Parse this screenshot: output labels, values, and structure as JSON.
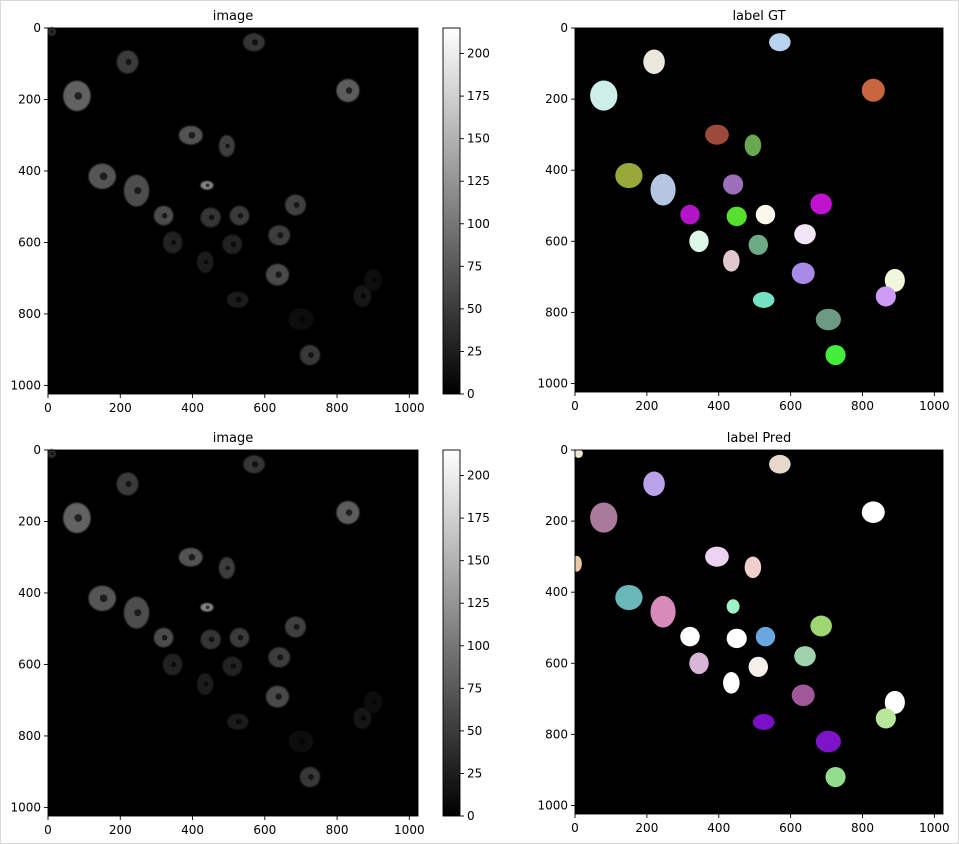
{
  "chart_data": [
    {
      "type": "heatmap",
      "title": "image",
      "xlim": [
        0,
        1024
      ],
      "ylim": [
        1024,
        0
      ],
      "xticks": [
        0,
        200,
        400,
        600,
        800,
        1000
      ],
      "yticks": [
        0,
        200,
        400,
        600,
        800,
        1000
      ],
      "colorbar": {
        "min": 0,
        "max": 215,
        "ticks": [
          0,
          25,
          50,
          75,
          100,
          125,
          150,
          175,
          200
        ],
        "cmap": "gray"
      },
      "nuclei": [
        {
          "x": 220,
          "y": 95,
          "rx": 30,
          "ry": 32,
          "level": 90
        },
        {
          "x": 570,
          "y": 40,
          "rx": 30,
          "ry": 25,
          "level": 80
        },
        {
          "x": 80,
          "y": 190,
          "rx": 38,
          "ry": 42,
          "level": 150
        },
        {
          "x": 830,
          "y": 175,
          "rx": 32,
          "ry": 32,
          "level": 140
        },
        {
          "x": 395,
          "y": 300,
          "rx": 33,
          "ry": 26,
          "level": 125
        },
        {
          "x": 495,
          "y": 330,
          "rx": 22,
          "ry": 30,
          "level": 95
        },
        {
          "x": 150,
          "y": 415,
          "rx": 38,
          "ry": 35,
          "level": 130
        },
        {
          "x": 245,
          "y": 455,
          "rx": 35,
          "ry": 44,
          "level": 120
        },
        {
          "x": 440,
          "y": 440,
          "rx": 18,
          "ry": 12,
          "level": 200
        },
        {
          "x": 320,
          "y": 525,
          "rx": 27,
          "ry": 27,
          "level": 115
        },
        {
          "x": 450,
          "y": 530,
          "rx": 28,
          "ry": 27,
          "level": 80
        },
        {
          "x": 530,
          "y": 525,
          "rx": 27,
          "ry": 27,
          "level": 90
        },
        {
          "x": 685,
          "y": 495,
          "rx": 29,
          "ry": 29,
          "level": 100
        },
        {
          "x": 345,
          "y": 600,
          "rx": 27,
          "ry": 30,
          "level": 55
        },
        {
          "x": 510,
          "y": 605,
          "rx": 27,
          "ry": 27,
          "level": 55
        },
        {
          "x": 640,
          "y": 580,
          "rx": 30,
          "ry": 28,
          "level": 95
        },
        {
          "x": 435,
          "y": 655,
          "rx": 23,
          "ry": 30,
          "level": 45
        },
        {
          "x": 635,
          "y": 690,
          "rx": 32,
          "ry": 30,
          "level": 110
        },
        {
          "x": 870,
          "y": 750,
          "rx": 25,
          "ry": 30,
          "level": 28
        },
        {
          "x": 900,
          "y": 705,
          "rx": 25,
          "ry": 30,
          "level": 25
        },
        {
          "x": 525,
          "y": 760,
          "rx": 30,
          "ry": 22,
          "level": 45
        },
        {
          "x": 700,
          "y": 815,
          "rx": 35,
          "ry": 30,
          "level": 25
        },
        {
          "x": 725,
          "y": 915,
          "rx": 28,
          "ry": 28,
          "level": 85
        },
        {
          "x": 10,
          "y": 10,
          "rx": 12,
          "ry": 12,
          "level": 70
        }
      ]
    },
    {
      "type": "heatmap",
      "title": "label GT",
      "xlim": [
        0,
        1024
      ],
      "ylim": [
        1024,
        0
      ],
      "xticks": [
        0,
        200,
        400,
        600,
        800,
        1000
      ],
      "yticks": [
        0,
        200,
        400,
        600,
        800,
        1000
      ],
      "labels": [
        {
          "x": 570,
          "y": 40,
          "rx": 30,
          "ry": 25,
          "color": "#b8d3f0"
        },
        {
          "x": 220,
          "y": 95,
          "rx": 30,
          "ry": 34,
          "color": "#ece7dc"
        },
        {
          "x": 80,
          "y": 190,
          "rx": 38,
          "ry": 42,
          "color": "#cdeee9"
        },
        {
          "x": 830,
          "y": 175,
          "rx": 32,
          "ry": 32,
          "color": "#c8663f"
        },
        {
          "x": 395,
          "y": 300,
          "rx": 33,
          "ry": 28,
          "color": "#9c4a3c"
        },
        {
          "x": 495,
          "y": 330,
          "rx": 23,
          "ry": 30,
          "color": "#6aa84f"
        },
        {
          "x": 150,
          "y": 415,
          "rx": 38,
          "ry": 35,
          "color": "#9aa83a"
        },
        {
          "x": 245,
          "y": 455,
          "rx": 35,
          "ry": 44,
          "color": "#b5c6e3"
        },
        {
          "x": 440,
          "y": 440,
          "rx": 28,
          "ry": 28,
          "color": "#9d6fba"
        },
        {
          "x": 320,
          "y": 525,
          "rx": 27,
          "ry": 27,
          "color": "#b414c8"
        },
        {
          "x": 450,
          "y": 530,
          "rx": 28,
          "ry": 27,
          "color": "#57e02e"
        },
        {
          "x": 530,
          "y": 525,
          "rx": 27,
          "ry": 27,
          "color": "#fbf8eb"
        },
        {
          "x": 685,
          "y": 495,
          "rx": 30,
          "ry": 29,
          "color": "#c113cf"
        },
        {
          "x": 345,
          "y": 600,
          "rx": 27,
          "ry": 30,
          "color": "#dcf7e8"
        },
        {
          "x": 510,
          "y": 610,
          "rx": 27,
          "ry": 28,
          "color": "#6cab84"
        },
        {
          "x": 640,
          "y": 580,
          "rx": 30,
          "ry": 28,
          "color": "#f2e5f8"
        },
        {
          "x": 435,
          "y": 655,
          "rx": 23,
          "ry": 30,
          "color": "#e1c8cc"
        },
        {
          "x": 635,
          "y": 690,
          "rx": 32,
          "ry": 30,
          "color": "#a98ae6"
        },
        {
          "x": 890,
          "y": 710,
          "rx": 28,
          "ry": 32,
          "color": "#eff7dc"
        },
        {
          "x": 865,
          "y": 755,
          "rx": 28,
          "ry": 28,
          "color": "#cc9bf3"
        },
        {
          "x": 525,
          "y": 765,
          "rx": 30,
          "ry": 22,
          "color": "#74e3c4"
        },
        {
          "x": 705,
          "y": 820,
          "rx": 35,
          "ry": 30,
          "color": "#6c9a85"
        },
        {
          "x": 725,
          "y": 920,
          "rx": 28,
          "ry": 28,
          "color": "#43ed3b"
        }
      ]
    },
    {
      "type": "heatmap",
      "title": "image",
      "xlim": [
        0,
        1024
      ],
      "ylim": [
        1024,
        0
      ],
      "xticks": [
        0,
        200,
        400,
        600,
        800,
        1000
      ],
      "yticks": [
        0,
        200,
        400,
        600,
        800,
        1000
      ],
      "colorbar": {
        "min": 0,
        "max": 215,
        "ticks": [
          0,
          25,
          50,
          75,
          100,
          125,
          150,
          175,
          200
        ],
        "cmap": "gray"
      },
      "same_image_as": 0
    },
    {
      "type": "heatmap",
      "title": "label Pred",
      "xlim": [
        0,
        1024
      ],
      "ylim": [
        1024,
        0
      ],
      "xticks": [
        0,
        200,
        400,
        600,
        800,
        1000
      ],
      "yticks": [
        0,
        200,
        400,
        600,
        800,
        1000
      ],
      "labels": [
        {
          "x": 10,
          "y": 10,
          "rx": 12,
          "ry": 12,
          "color": "#efe4d4"
        },
        {
          "x": 570,
          "y": 40,
          "rx": 30,
          "ry": 26,
          "color": "#e6d9cc"
        },
        {
          "x": 220,
          "y": 95,
          "rx": 30,
          "ry": 34,
          "color": "#b9a2e8"
        },
        {
          "x": 80,
          "y": 190,
          "rx": 38,
          "ry": 42,
          "color": "#a97a9c"
        },
        {
          "x": 830,
          "y": 175,
          "rx": 32,
          "ry": 30,
          "color": "#ffffff"
        },
        {
          "x": 395,
          "y": 300,
          "rx": 33,
          "ry": 28,
          "color": "#ecd3f2"
        },
        {
          "x": 495,
          "y": 330,
          "rx": 23,
          "ry": 30,
          "color": "#efcfcc"
        },
        {
          "x": 5,
          "y": 320,
          "rx": 14,
          "ry": 22,
          "color": "#e8c8a8"
        },
        {
          "x": 150,
          "y": 415,
          "rx": 38,
          "ry": 35,
          "color": "#6bb8bb"
        },
        {
          "x": 245,
          "y": 455,
          "rx": 35,
          "ry": 44,
          "color": "#d88ab8"
        },
        {
          "x": 440,
          "y": 440,
          "rx": 18,
          "ry": 20,
          "color": "#9ff2c8"
        },
        {
          "x": 320,
          "y": 525,
          "rx": 27,
          "ry": 27,
          "color": "#ffffff"
        },
        {
          "x": 450,
          "y": 530,
          "rx": 28,
          "ry": 27,
          "color": "#ffffff"
        },
        {
          "x": 530,
          "y": 525,
          "rx": 27,
          "ry": 27,
          "color": "#6aa7e0"
        },
        {
          "x": 685,
          "y": 495,
          "rx": 30,
          "ry": 29,
          "color": "#9ed672"
        },
        {
          "x": 345,
          "y": 600,
          "rx": 27,
          "ry": 30,
          "color": "#d8b6d8"
        },
        {
          "x": 510,
          "y": 610,
          "rx": 27,
          "ry": 28,
          "color": "#f6f0ea"
        },
        {
          "x": 640,
          "y": 580,
          "rx": 30,
          "ry": 28,
          "color": "#9fd3ac"
        },
        {
          "x": 435,
          "y": 655,
          "rx": 23,
          "ry": 30,
          "color": "#ffffff"
        },
        {
          "x": 635,
          "y": 690,
          "rx": 32,
          "ry": 30,
          "color": "#a05898"
        },
        {
          "x": 890,
          "y": 710,
          "rx": 28,
          "ry": 32,
          "color": "#ffffff"
        },
        {
          "x": 865,
          "y": 755,
          "rx": 28,
          "ry": 28,
          "color": "#b9e69a"
        },
        {
          "x": 525,
          "y": 765,
          "rx": 30,
          "ry": 22,
          "color": "#7b10c9"
        },
        {
          "x": 705,
          "y": 820,
          "rx": 35,
          "ry": 30,
          "color": "#7e14c8"
        },
        {
          "x": 725,
          "y": 920,
          "rx": 28,
          "ry": 28,
          "color": "#93dd8f"
        }
      ]
    }
  ]
}
